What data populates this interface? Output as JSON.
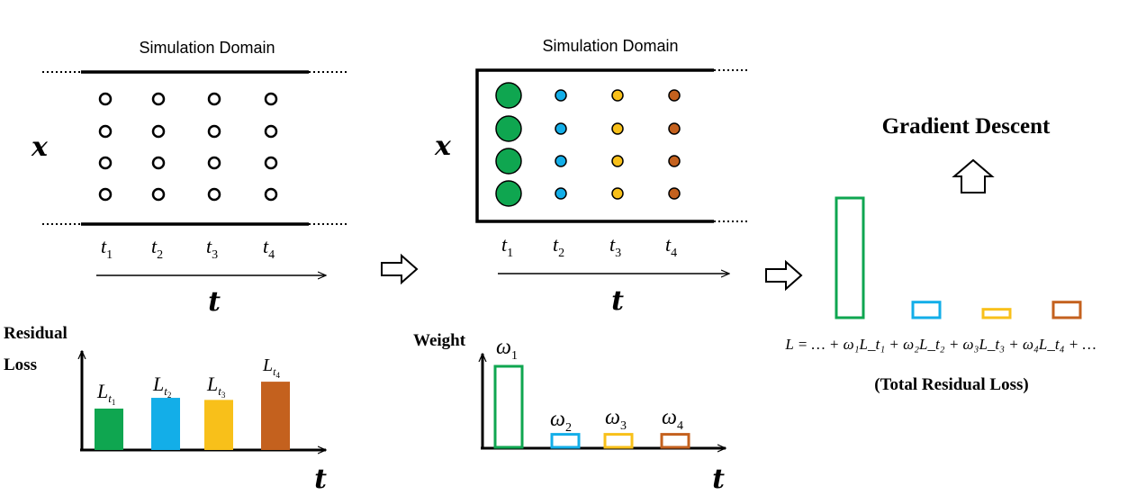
{
  "colors": {
    "green": "#0fa650",
    "blue": "#13aee8",
    "yellow": "#f8c01a",
    "orange": "#c4611e",
    "black": "#000000"
  },
  "panel1": {
    "title": "Simulation Domain",
    "x_label": "x",
    "time_labels": [
      "t",
      "t",
      "t",
      "t"
    ],
    "time_subs": [
      "1",
      "2",
      "3",
      "4"
    ],
    "axis_label": "t"
  },
  "panel2": {
    "title": "Simulation Domain",
    "x_label": "x",
    "time_labels": [
      "t",
      "t",
      "t",
      "t"
    ],
    "time_subs": [
      "1",
      "2",
      "3",
      "4"
    ],
    "axis_label": "t"
  },
  "residual_chart": {
    "ylabel_line1": "Residual",
    "ylabel_line2": "Loss",
    "xlabel": "t",
    "bar_labels": [
      "L",
      "L",
      "L",
      "L"
    ],
    "bar_subs": [
      "t1",
      "t2",
      "t3",
      "t4"
    ],
    "values": [
      1.0,
      1.26,
      1.21,
      1.65
    ],
    "colors": [
      "green",
      "blue",
      "yellow",
      "orange"
    ]
  },
  "weight_chart": {
    "ylabel": "Weight",
    "xlabel": "t",
    "bar_labels": [
      "ω",
      "ω",
      "ω",
      "ω"
    ],
    "bar_subs": [
      "1",
      "2",
      "3",
      "4"
    ],
    "values": [
      1.0,
      0.16,
      0.16,
      0.16
    ],
    "colors": [
      "green",
      "blue",
      "yellow",
      "orange"
    ]
  },
  "total": {
    "title": "Gradient Descent",
    "formula": "L = … + ω₁L_t₁ + ω₂L_t₂ + ω₃L_t₃ + ω₄L_t₄ + …",
    "caption": "(Total Residual Loss)",
    "values": [
      1.0,
      0.13,
      0.07,
      0.13
    ],
    "colors": [
      "green",
      "blue",
      "yellow",
      "orange"
    ]
  }
}
